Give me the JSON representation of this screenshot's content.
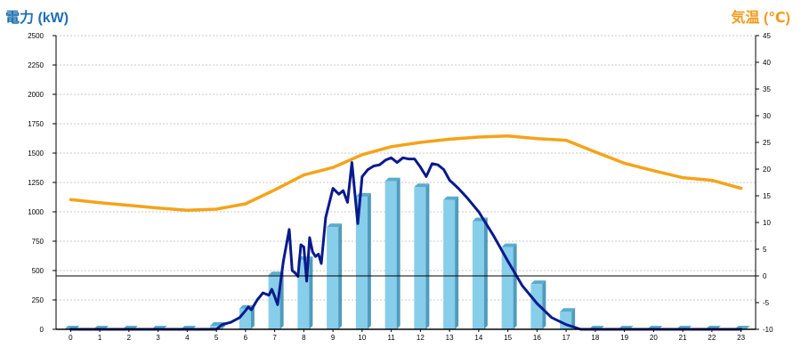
{
  "chart_data": {
    "type": "bar",
    "left_axis_title": "電力 (kW)",
    "right_axis_title": "気温 (℃)",
    "categories": [
      "0",
      "1",
      "2",
      "3",
      "4",
      "5",
      "6",
      "7",
      "8",
      "9",
      "10",
      "11",
      "12",
      "13",
      "14",
      "15",
      "16",
      "17",
      "18",
      "19",
      "20",
      "21",
      "22",
      "23"
    ],
    "ylim_left": [
      0,
      2500
    ],
    "yticks_left": [
      "0",
      "250",
      "500",
      "750",
      "1000",
      "1250",
      "1500",
      "1750",
      "2000",
      "2250",
      "2500"
    ],
    "ylim_right": [
      -10,
      45
    ],
    "yticks_right": [
      "-10",
      "-5",
      "0",
      "5",
      "10",
      "15",
      "20",
      "25",
      "30",
      "35",
      "40",
      "45"
    ],
    "grid": true,
    "series": [
      {
        "kind": "bar",
        "axis": "left",
        "color": "#87ceeb",
        "values": [
          0,
          0,
          0,
          0,
          0,
          30,
          175,
          460,
          590,
          870,
          1130,
          1260,
          1210,
          1100,
          920,
          700,
          385,
          150,
          0,
          0,
          0,
          0,
          0,
          0
        ]
      },
      {
        "kind": "line",
        "axis": "left",
        "color": "#0a1a8c",
        "points": [
          [
            0,
            0
          ],
          [
            1,
            0
          ],
          [
            2,
            0
          ],
          [
            3,
            0
          ],
          [
            4,
            0
          ],
          [
            5,
            0
          ],
          [
            5.2,
            40
          ],
          [
            5.5,
            60
          ],
          [
            5.8,
            100
          ],
          [
            6,
            160
          ],
          [
            6.1,
            190
          ],
          [
            6.2,
            165
          ],
          [
            6.4,
            250
          ],
          [
            6.6,
            310
          ],
          [
            6.8,
            290
          ],
          [
            6.9,
            340
          ],
          [
            7,
            280
          ],
          [
            7.1,
            210
          ],
          [
            7.3,
            580
          ],
          [
            7.5,
            850
          ],
          [
            7.6,
            500
          ],
          [
            7.7,
            480
          ],
          [
            7.8,
            450
          ],
          [
            7.9,
            720
          ],
          [
            8.0,
            700
          ],
          [
            8.1,
            410
          ],
          [
            8.2,
            780
          ],
          [
            8.3,
            660
          ],
          [
            8.4,
            620
          ],
          [
            8.5,
            640
          ],
          [
            8.6,
            560
          ],
          [
            8.75,
            950
          ],
          [
            9,
            1200
          ],
          [
            9.2,
            1150
          ],
          [
            9.35,
            1180
          ],
          [
            9.5,
            1080
          ],
          [
            9.65,
            1420
          ],
          [
            9.85,
            900
          ],
          [
            10,
            1300
          ],
          [
            10.2,
            1360
          ],
          [
            10.4,
            1390
          ],
          [
            10.6,
            1400
          ],
          [
            10.8,
            1440
          ],
          [
            11,
            1460
          ],
          [
            11.2,
            1420
          ],
          [
            11.4,
            1460
          ],
          [
            11.6,
            1450
          ],
          [
            11.8,
            1450
          ],
          [
            12,
            1380
          ],
          [
            12.2,
            1300
          ],
          [
            12.4,
            1410
          ],
          [
            12.6,
            1400
          ],
          [
            12.8,
            1360
          ],
          [
            13,
            1270
          ],
          [
            13.3,
            1200
          ],
          [
            13.6,
            1120
          ],
          [
            14,
            1000
          ],
          [
            14.5,
            800
          ],
          [
            15,
            580
          ],
          [
            15.5,
            370
          ],
          [
            16,
            220
          ],
          [
            16.5,
            100
          ],
          [
            17,
            40
          ],
          [
            17.5,
            0
          ],
          [
            18,
            0
          ],
          [
            19,
            0
          ],
          [
            20,
            0
          ],
          [
            21,
            0
          ],
          [
            22,
            0
          ],
          [
            23,
            0
          ]
        ]
      },
      {
        "kind": "line",
        "axis": "right",
        "color": "#f5a31a",
        "points": [
          [
            0,
            14.3
          ],
          [
            1,
            13.7
          ],
          [
            2,
            13.2
          ],
          [
            3,
            12.7
          ],
          [
            4,
            12.3
          ],
          [
            5,
            12.5
          ],
          [
            6,
            13.5
          ],
          [
            7,
            16.1
          ],
          [
            8,
            18.9
          ],
          [
            9,
            20.3
          ],
          [
            10,
            22.7
          ],
          [
            11,
            24.2
          ],
          [
            12,
            25.0
          ],
          [
            13,
            25.6
          ],
          [
            14,
            26.0
          ],
          [
            15,
            26.2
          ],
          [
            16,
            25.7
          ],
          [
            17,
            25.4
          ],
          [
            18,
            23.2
          ],
          [
            19,
            21.1
          ],
          [
            20,
            19.7
          ],
          [
            21,
            18.4
          ],
          [
            22,
            17.9
          ],
          [
            23,
            16.4
          ]
        ]
      }
    ]
  }
}
